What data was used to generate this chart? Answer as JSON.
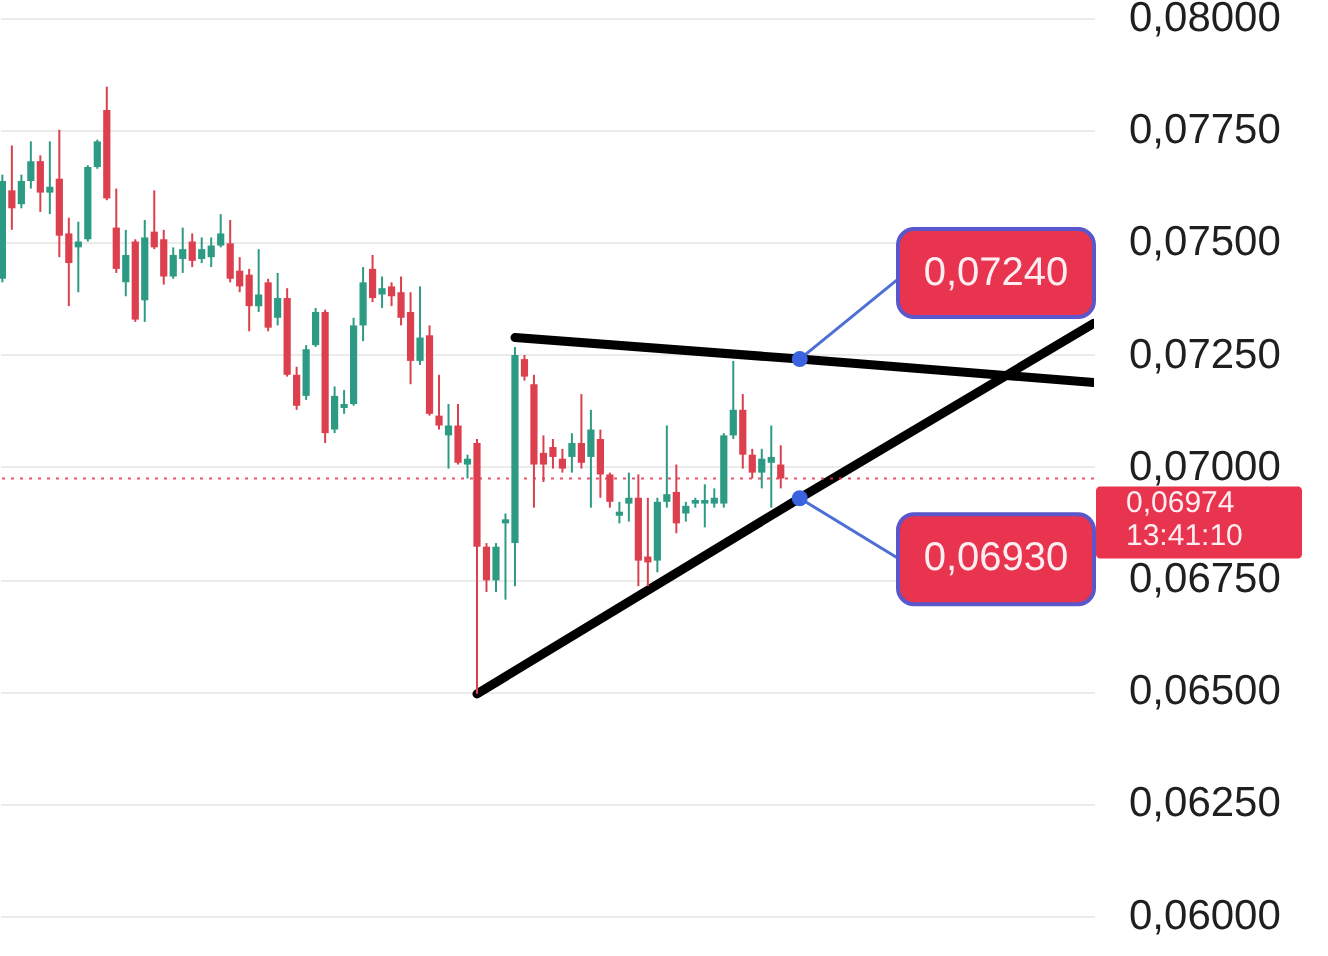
{
  "chart_data": {
    "type": "candlestick",
    "categories": [
      null,
      null,
      null,
      null,
      null,
      null,
      null,
      null,
      null,
      null,
      null,
      null,
      null,
      null,
      null,
      null,
      null,
      null,
      null,
      null,
      null,
      null,
      null,
      null,
      null,
      null,
      null,
      null,
      null,
      null,
      null,
      null,
      null,
      null,
      null,
      null,
      null,
      null,
      null,
      null,
      null,
      null,
      null,
      null,
      null,
      null,
      null,
      null,
      null,
      null,
      null,
      null,
      null,
      null,
      null,
      null,
      null,
      null,
      null,
      null,
      null,
      null,
      null,
      null,
      null,
      null,
      null,
      null,
      null,
      null,
      null,
      null,
      null,
      null,
      null,
      null,
      null,
      null,
      null,
      null,
      null,
      null,
      null,
      null,
      null,
      null,
      null,
      null,
      null,
      null,
      null,
      null,
      null,
      null,
      null,
      null,
      null,
      null,
      null,
      null,
      null,
      null,
      null,
      null,
      null,
      null,
      null,
      null,
      null,
      null,
      null,
      null,
      null,
      null,
      null,
      null
    ],
    "ohlc": [
      [
        0.07419,
        0.07651,
        0.07411,
        0.07637
      ],
      [
        0.07616,
        0.07716,
        0.07528,
        0.07576
      ],
      [
        0.07585,
        0.07651,
        0.07576,
        0.07637
      ],
      [
        0.07637,
        0.07725,
        0.0762,
        0.07681
      ],
      [
        0.07681,
        0.07694,
        0.07568,
        0.07611
      ],
      [
        0.07611,
        0.07725,
        0.07563,
        0.07624
      ],
      [
        0.07642,
        0.07751,
        0.07467,
        0.07515
      ],
      [
        0.0752,
        0.07555,
        0.07358,
        0.07454
      ],
      [
        0.07489,
        0.07546,
        0.07389,
        0.07502
      ],
      [
        0.07507,
        0.07672,
        0.07502,
        0.07668
      ],
      [
        0.07668,
        0.07729,
        0.07664,
        0.07725
      ],
      [
        0.07795,
        0.07847,
        0.07594,
        0.07598
      ],
      [
        0.07533,
        0.0762,
        0.07432,
        0.07441
      ],
      [
        0.07411,
        0.07528,
        0.0738,
        0.07472
      ],
      [
        0.07502,
        0.07507,
        0.07323,
        0.07328
      ],
      [
        0.07371,
        0.0755,
        0.07323,
        0.07511
      ],
      [
        0.07524,
        0.07616,
        0.07485,
        0.07489
      ],
      [
        0.07507,
        0.07528,
        0.07406,
        0.07424
      ],
      [
        0.07424,
        0.07489,
        0.07419,
        0.07472
      ],
      [
        0.07463,
        0.07533,
        0.07432,
        0.07485
      ],
      [
        0.07502,
        0.0752,
        0.07445,
        0.07459
      ],
      [
        0.07463,
        0.07511,
        0.07454,
        0.07485
      ],
      [
        0.07467,
        0.07511,
        0.07445,
        0.07493
      ],
      [
        0.07493,
        0.07563,
        0.07489,
        0.0752
      ],
      [
        0.07498,
        0.0755,
        0.07411,
        0.07419
      ],
      [
        0.07437,
        0.07467,
        0.07389,
        0.07402
      ],
      [
        0.07428,
        0.07441,
        0.07302,
        0.07358
      ],
      [
        0.07358,
        0.07485,
        0.07345,
        0.07384
      ],
      [
        0.07411,
        0.07419,
        0.07302,
        0.0731
      ],
      [
        0.07332,
        0.07432,
        0.07315,
        0.07376
      ],
      [
        0.07376,
        0.07398,
        0.07201,
        0.07205
      ],
      [
        0.07205,
        0.07223,
        0.07127,
        0.07136
      ],
      [
        0.07158,
        0.07271,
        0.07149,
        0.07262
      ],
      [
        0.07271,
        0.07354,
        0.07267,
        0.07345
      ],
      [
        0.07345,
        0.0735,
        0.07053,
        0.07075
      ],
      [
        0.07083,
        0.07179,
        0.07075,
        0.07158
      ],
      [
        0.07131,
        0.07171,
        0.07118,
        0.0714
      ],
      [
        0.0714,
        0.07332,
        0.07136,
        0.07315
      ],
      [
        0.07315,
        0.07445,
        0.0728,
        0.07411
      ],
      [
        0.07441,
        0.07472,
        0.07367,
        0.07376
      ],
      [
        0.07384,
        0.07424,
        0.07354,
        0.07398
      ],
      [
        0.07402,
        0.07411,
        0.07358,
        0.0738
      ],
      [
        0.07389,
        0.07424,
        0.07315,
        0.07332
      ],
      [
        0.07345,
        0.07389,
        0.07184,
        0.07236
      ],
      [
        0.07236,
        0.07402,
        0.07227,
        0.07288
      ],
      [
        0.07293,
        0.07315,
        0.07114,
        0.07118
      ],
      [
        0.07114,
        0.07205,
        0.07083,
        0.07092
      ],
      [
        0.0707,
        0.0714,
        0.06996,
        0.07092
      ],
      [
        0.07092,
        0.0714,
        0.07005,
        0.07009
      ],
      [
        0.07005,
        0.07027,
        0.06974,
        0.07018
      ],
      [
        0.07053,
        0.07062,
        0.06494,
        0.06822
      ],
      [
        0.06822,
        0.0683,
        0.06721,
        0.06747
      ],
      [
        0.06747,
        0.0683,
        0.06721,
        0.06822
      ],
      [
        0.06874,
        0.06896,
        0.06704,
        0.06883
      ],
      [
        0.0683,
        0.07267,
        0.06734,
        0.07249
      ],
      [
        0.0724,
        0.07249,
        0.07192,
        0.07201
      ],
      [
        0.07184,
        0.07205,
        0.06909,
        0.07005
      ],
      [
        0.07031,
        0.0707,
        0.06966,
        0.07005
      ],
      [
        0.07044,
        0.07062,
        0.06996,
        0.07022
      ],
      [
        0.07018,
        0.0704,
        0.06987,
        0.06996
      ],
      [
        0.07022,
        0.07075,
        0.06987,
        0.07053
      ],
      [
        0.07053,
        0.07162,
        0.06996,
        0.07009
      ],
      [
        0.07022,
        0.07127,
        0.06909,
        0.07083
      ],
      [
        0.07062,
        0.07083,
        0.06931,
        0.06983
      ],
      [
        0.06983,
        0.06987,
        0.06909,
        0.06922
      ],
      [
        0.06891,
        0.06922,
        0.06874,
        0.069
      ],
      [
        0.06918,
        0.06987,
        0.06878,
        0.06931
      ],
      [
        0.06931,
        0.06983,
        0.06734,
        0.06791
      ],
      [
        0.068,
        0.06931,
        0.06734,
        0.06787
      ],
      [
        0.06791,
        0.06931,
        0.06765,
        0.06922
      ],
      [
        0.06922,
        0.07092,
        0.06909,
        0.06939
      ],
      [
        0.06944,
        0.07005,
        0.06852,
        0.06874
      ],
      [
        0.06896,
        0.06922,
        0.06878,
        0.06913
      ],
      [
        0.06918,
        0.06931,
        0.06909,
        0.06926
      ],
      [
        0.06918,
        0.06961,
        0.06865,
        0.06926
      ],
      [
        0.06918,
        0.06952,
        0.06909,
        0.06931
      ],
      [
        0.06918,
        0.07075,
        0.06909,
        0.0707
      ],
      [
        0.0707,
        0.07236,
        0.07062,
        0.07127
      ],
      [
        0.07127,
        0.07162,
        0.06996,
        0.07027
      ],
      [
        0.07027,
        0.0704,
        0.06974,
        0.06987
      ],
      [
        0.06987,
        0.0704,
        0.06952,
        0.07018
      ],
      [
        0.07009,
        0.07092,
        0.06909,
        0.07022
      ],
      [
        0.07005,
        0.07048,
        0.06952,
        0.06974
      ],
      null,
      null,
      null,
      null,
      null,
      null,
      null,
      null,
      null,
      null,
      null,
      null,
      null,
      null,
      null,
      null,
      null,
      null,
      null,
      null,
      null,
      null,
      null,
      null,
      null,
      null,
      null,
      null,
      null,
      null,
      null,
      null,
      null
    ],
    "colors": [
      "#2d9b83",
      "#dc3f4d",
      "#2d9b83",
      "#2d9b83",
      "#dc3f4d",
      "#2d9b83",
      "#dc3f4d",
      "#dc3f4d",
      "#2d9b83",
      "#2d9b83",
      "#2d9b83",
      "#dc3f4d",
      "#dc3f4d",
      "#2d9b83",
      "#dc3f4d",
      "#2d9b83",
      "#dc3f4d",
      "#dc3f4d",
      "#2d9b83",
      "#2d9b83",
      "#dc3f4d",
      "#2d9b83",
      "#2d9b83",
      "#2d9b83",
      "#dc3f4d",
      "#dc3f4d",
      "#dc3f4d",
      "#2d9b83",
      "#dc3f4d",
      "#2d9b83",
      "#dc3f4d",
      "#dc3f4d",
      "#2d9b83",
      "#2d9b83",
      "#dc3f4d",
      "#2d9b83",
      "#2d9b83",
      "#2d9b83",
      "#2d9b83",
      "#dc3f4d",
      "#2d9b83",
      "#dc3f4d",
      "#dc3f4d",
      "#dc3f4d",
      "#2d9b83",
      "#dc3f4d",
      "#dc3f4d",
      "#2d9b83",
      "#dc3f4d",
      "#2d9b83",
      "#dc3f4d",
      "#dc3f4d",
      "#2d9b83",
      "#2d9b83",
      "#2d9b83",
      "#dc3f4d",
      "#dc3f4d",
      "#dc3f4d",
      "#dc3f4d",
      "#dc3f4d",
      "#2d9b83",
      "#dc3f4d",
      "#2d9b83",
      "#dc3f4d",
      "#dc3f4d",
      "#2d9b83",
      "#2d9b83",
      "#dc3f4d",
      "#dc3f4d",
      "#2d9b83",
      "#2d9b83",
      "#dc3f4d",
      "#2d9b83",
      "#2d9b83",
      "#2d9b83",
      "#2d9b83",
      "#2d9b83",
      "#2d9b83",
      "#dc3f4d",
      "#dc3f4d",
      "#2d9b83",
      "#2d9b83",
      "#dc3f4d",
      null,
      null,
      null,
      null,
      null,
      null,
      null,
      null,
      null,
      null,
      null,
      null,
      null,
      null,
      null,
      null,
      null,
      null,
      null,
      null,
      null,
      null,
      null,
      null,
      null,
      null,
      null,
      null,
      null,
      null,
      null,
      null,
      null
    ],
    "series": [
      {
        "type": "line",
        "color": "#000000",
        "values": [
          null,
          null,
          null,
          null,
          null,
          null,
          null,
          null,
          null,
          null,
          null,
          null,
          null,
          null,
          null,
          null,
          null,
          null,
          null,
          null,
          null,
          null,
          null,
          null,
          null,
          null,
          null,
          null,
          null,
          null,
          null,
          null,
          null,
          null,
          null,
          null,
          null,
          null,
          null,
          null,
          null,
          null,
          null,
          null,
          null,
          null,
          null,
          null,
          null,
          null,
          null,
          null,
          null,
          null,
          0.07288,
          null,
          null,
          null,
          null,
          null,
          null,
          null,
          null,
          null,
          null,
          null,
          null,
          null,
          null,
          null,
          null,
          null,
          null,
          null,
          null,
          null,
          null,
          null,
          null,
          null,
          null,
          null,
          null,
          null,
          0.0724,
          null,
          null,
          null,
          null,
          null,
          null,
          null,
          null,
          null,
          null,
          null,
          null,
          null,
          null,
          null,
          null,
          null,
          null,
          null,
          null,
          null,
          null,
          null,
          null,
          null,
          null,
          null,
          null,
          null,
          null,
          0.07188
        ],
        "value_labels": [
          null,
          null,
          null,
          null,
          null,
          null,
          null,
          null,
          null,
          null,
          null,
          null,
          null,
          null,
          null,
          null,
          null,
          null,
          null,
          null,
          null,
          null,
          null,
          null,
          null,
          null,
          null,
          null,
          null,
          null,
          null,
          null,
          null,
          null,
          null,
          null,
          null,
          null,
          null,
          null,
          null,
          null,
          null,
          null,
          null,
          null,
          null,
          null,
          null,
          null,
          null,
          null,
          null,
          null,
          null,
          null,
          null,
          null,
          null,
          null,
          null,
          null,
          null,
          null,
          null,
          null,
          null,
          null,
          null,
          null,
          null,
          null,
          null,
          null,
          null,
          null,
          null,
          null,
          null,
          null,
          null,
          null,
          null,
          null,
          "0,07240",
          null,
          null,
          null,
          null,
          null,
          null,
          null,
          null,
          null,
          null,
          null,
          null,
          null,
          null,
          null,
          null,
          null,
          null,
          null,
          null,
          null,
          null,
          null,
          null,
          null,
          null,
          null,
          null,
          null,
          null,
          null
        ]
      },
      {
        "type": "line",
        "color": "#000000",
        "values": [
          null,
          null,
          null,
          null,
          null,
          null,
          null,
          null,
          null,
          null,
          null,
          null,
          null,
          null,
          null,
          null,
          null,
          null,
          null,
          null,
          null,
          null,
          null,
          null,
          null,
          null,
          null,
          null,
          null,
          null,
          null,
          null,
          null,
          null,
          null,
          null,
          null,
          null,
          null,
          null,
          null,
          null,
          null,
          null,
          null,
          null,
          null,
          null,
          null,
          null,
          0.06494,
          null,
          null,
          null,
          null,
          null,
          null,
          null,
          null,
          null,
          null,
          null,
          null,
          null,
          null,
          null,
          null,
          null,
          null,
          null,
          null,
          null,
          null,
          null,
          null,
          null,
          null,
          null,
          null,
          null,
          null,
          null,
          null,
          null,
          0.0693,
          null,
          null,
          null,
          null,
          null,
          null,
          null,
          null,
          null,
          null,
          null,
          null,
          null,
          null,
          null,
          null,
          null,
          null,
          null,
          null,
          null,
          null,
          null,
          null,
          null,
          null,
          null,
          null,
          null,
          null,
          0.0732
        ],
        "value_labels": [
          null,
          null,
          null,
          null,
          null,
          null,
          null,
          null,
          null,
          null,
          null,
          null,
          null,
          null,
          null,
          null,
          null,
          null,
          null,
          null,
          null,
          null,
          null,
          null,
          null,
          null,
          null,
          null,
          null,
          null,
          null,
          null,
          null,
          null,
          null,
          null,
          null,
          null,
          null,
          null,
          null,
          null,
          null,
          null,
          null,
          null,
          null,
          null,
          null,
          null,
          null,
          null,
          null,
          null,
          null,
          null,
          null,
          null,
          null,
          null,
          null,
          null,
          null,
          null,
          null,
          null,
          null,
          null,
          null,
          null,
          null,
          null,
          null,
          null,
          null,
          null,
          null,
          null,
          null,
          null,
          null,
          null,
          null,
          null,
          "0,06930",
          null,
          null,
          null,
          null,
          null,
          null,
          null,
          null,
          null,
          null,
          null,
          null,
          null,
          null,
          null,
          null,
          null,
          null,
          null,
          null,
          null,
          null,
          null,
          null,
          null,
          null,
          null,
          null,
          null,
          null,
          null
        ]
      }
    ],
    "ylim": [
      0.0591,
      0.08
    ],
    "yticks": [
      {
        "value": 0.06,
        "label": "0,06000"
      },
      {
        "value": 0.0625,
        "label": "0,06250"
      },
      {
        "value": 0.065,
        "label": "0,06500"
      },
      {
        "value": 0.0675,
        "label": "0,06750"
      },
      {
        "value": 0.07,
        "label": "0,07000"
      },
      {
        "value": 0.0725,
        "label": "0,07250"
      },
      {
        "value": 0.075,
        "label": "0,07500"
      },
      {
        "value": 0.0775,
        "label": "0,07750"
      },
      {
        "value": 0.08,
        "label": "0,08000"
      }
    ],
    "ref_lines": [
      {
        "axis": "y",
        "value": 0.06974,
        "label": "0,06974\n13:41:10",
        "color": "#e8344e",
        "line_style": "dotted"
      }
    ],
    "grid": "y",
    "tick_labels": "y"
  }
}
